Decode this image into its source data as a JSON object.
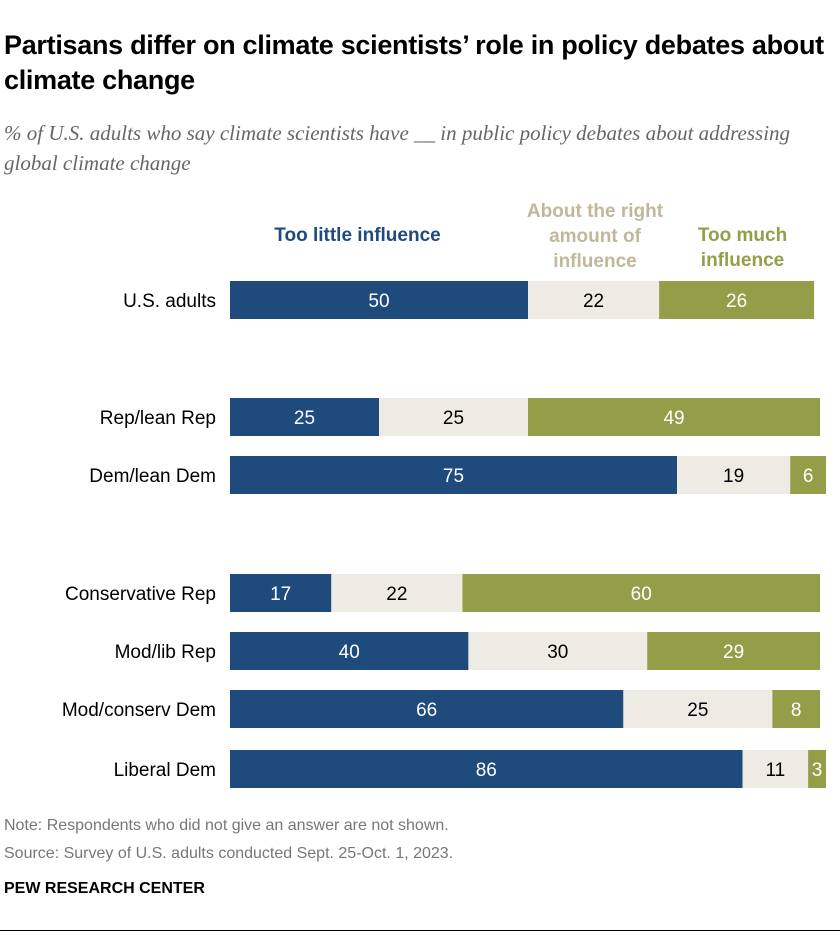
{
  "title": "Partisans differ on climate scientists’ role in policy debates about climate change",
  "subtitle": "% of U.S. adults who say climate scientists have __ in public policy debates about addressing global climate change",
  "note": "Note: Respondents who did not give an answer are not shown.",
  "source": "Source: Survey of U.S. adults conducted Sept. 25-Oct. 1, 2023.",
  "brand": "PEW RESEARCH CENTER",
  "chart_data": {
    "type": "bar",
    "orientation": "horizontal-stacked",
    "categories": [
      "U.S. adults",
      "Rep/lean Rep",
      "Dem/lean Dem",
      "Conservative Rep",
      "Mod/lib Rep",
      "Mod/conserv Dem",
      "Liberal Dem"
    ],
    "series": [
      {
        "name": "Too little influence",
        "color": "#1f4a7c",
        "values": [
          50,
          25,
          75,
          17,
          40,
          66,
          86
        ]
      },
      {
        "name": "About the right amount of influence",
        "color": "#eeebe4",
        "values": [
          22,
          25,
          19,
          22,
          30,
          25,
          11
        ]
      },
      {
        "name": "Too much influence",
        "color": "#949e49",
        "values": [
          26,
          49,
          6,
          60,
          29,
          8,
          3
        ]
      }
    ],
    "legend_colors": [
      "#1f4a7c",
      "#c1b89b",
      "#949e49"
    ],
    "xlim": [
      0,
      100
    ],
    "grid": false,
    "legend_placement": "top"
  }
}
